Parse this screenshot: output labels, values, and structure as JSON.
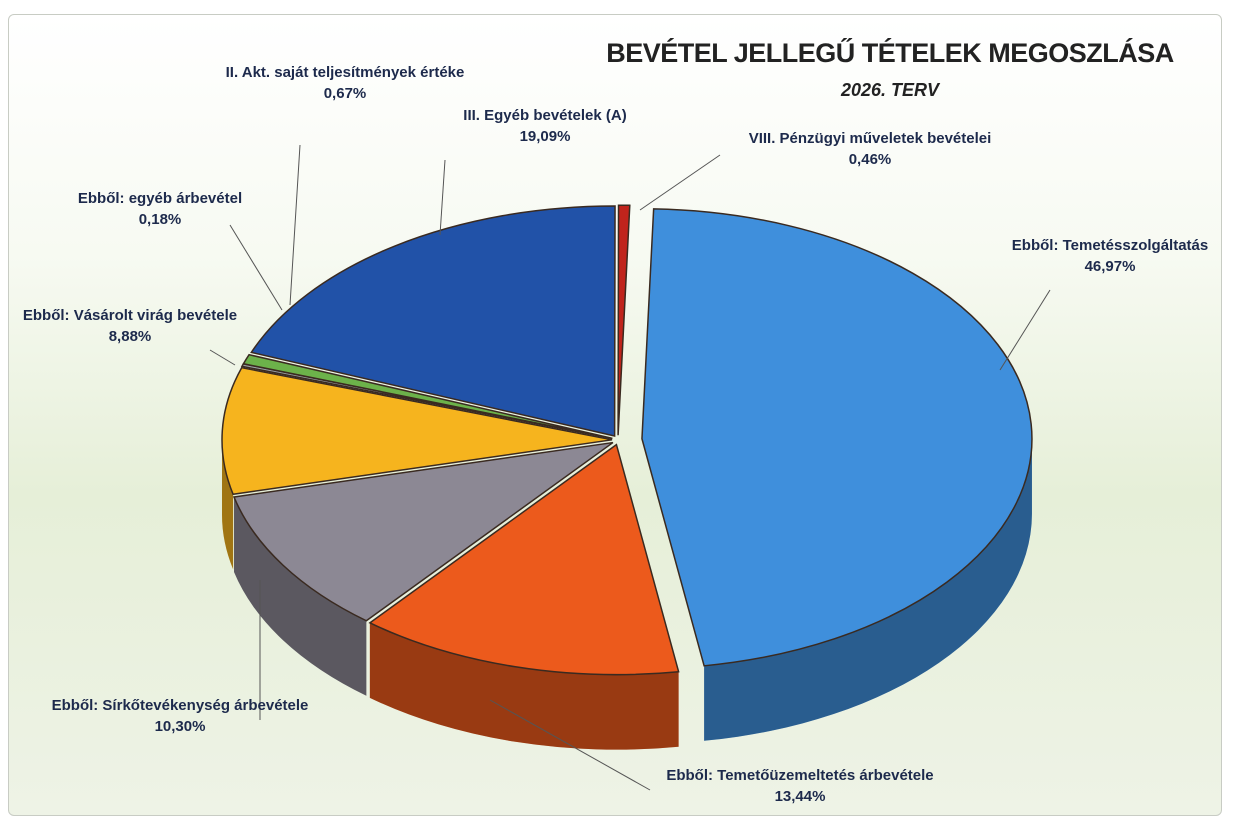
{
  "chart_data": {
    "type": "pie",
    "title": "BEVÉTEL JELLEGŰ TÉTELEK MEGOSZLÁSA",
    "subtitle": "2026. TERV",
    "categories": [
      "Ebből: Temetésszolgáltatás",
      "Ebből: Temetőüzemeltetés árbevétele",
      "Ebből: Sírkőtevékenység árbevétele",
      "Ebből: Vásárolt virág bevétele",
      "Ebből: egyéb árbevétel",
      "II. Akt. saját teljesítmények értéke",
      "III. Egyéb bevételek (A)",
      "VIII. Pénzügyi műveletek bevételei"
    ],
    "values": [
      46.97,
      13.44,
      10.3,
      8.88,
      0.18,
      0.67,
      19.09,
      0.46
    ],
    "value_labels": [
      "46,97%",
      "13,44%",
      "10,30%",
      "8,88%",
      "0,18%",
      "0,67%",
      "19,09%",
      "0,46%"
    ],
    "colors": [
      "#3f8fdc",
      "#ec5a1c",
      "#8c8894",
      "#f6b41e",
      "#9aa0a6",
      "#6cb24a",
      "#2152a8",
      "#c0241c"
    ]
  }
}
